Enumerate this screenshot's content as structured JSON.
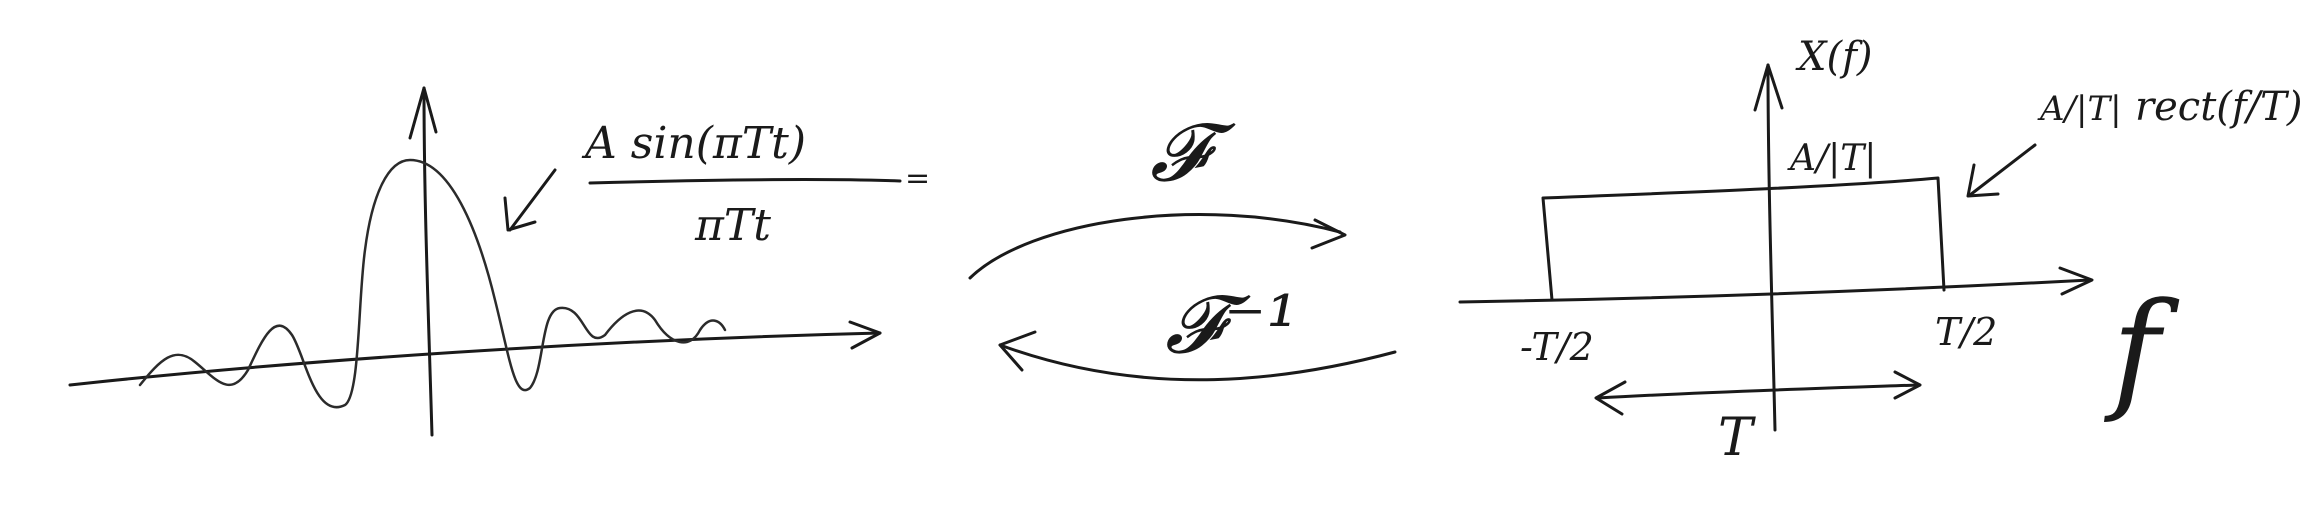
{
  "left_panel": {
    "function_numerator": "A sin(πTt)",
    "function_denominator": "πTt",
    "equals": "="
  },
  "middle_panel": {
    "forward_transform": "𝓕",
    "inverse_transform": "𝓕⁻¹"
  },
  "right_panel": {
    "y_axis_label": "X(f)",
    "amplitude_label": "A/|T|",
    "x_axis_label": "f",
    "rect_formula_coeff": "A/|T|",
    "rect_formula_func": "rect(f/T)",
    "left_edge_label": "-T/2",
    "right_edge_label": "T/2",
    "width_label": "T"
  }
}
